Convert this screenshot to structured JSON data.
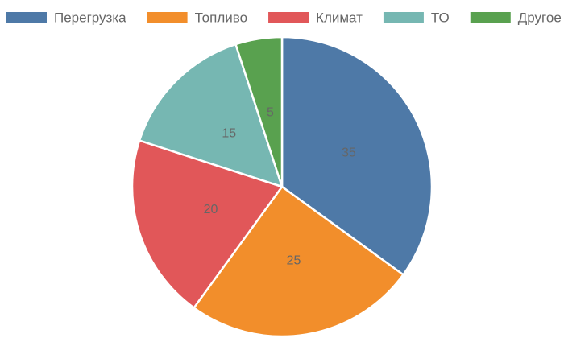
{
  "chart_data": {
    "type": "pie",
    "title": "",
    "legend_position": "top",
    "categories": [
      "Перегрузка",
      "Топливо",
      "Климат",
      "ТО",
      "Другое"
    ],
    "values": [
      35,
      25,
      20,
      15,
      5
    ],
    "data_labels": [
      "35",
      "25",
      "20",
      "15",
      "5"
    ],
    "colors": [
      "#4e79a7",
      "#f28e2b",
      "#e15759",
      "#76b7b2",
      "#59a14f"
    ],
    "start_angle": "top, clockwise"
  }
}
